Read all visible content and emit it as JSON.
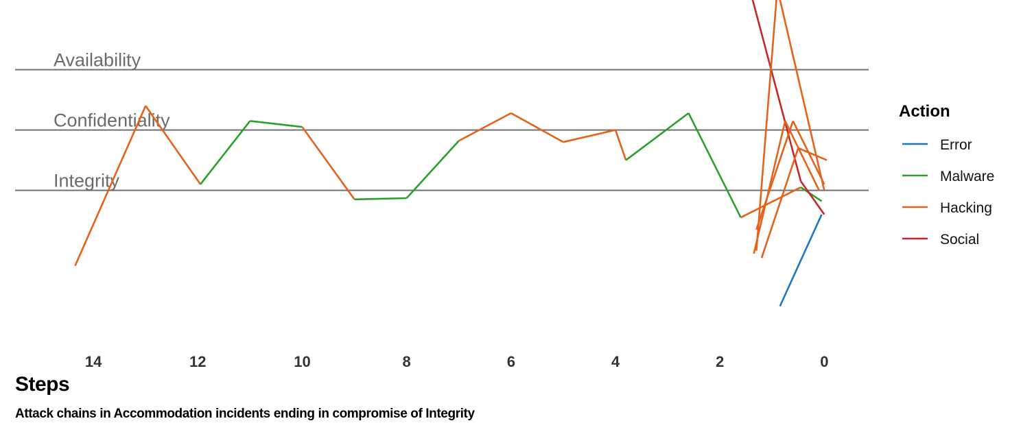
{
  "chart_data": {
    "type": "line",
    "xlabel": "Steps",
    "caption": "Attack chains in Accommodation incidents ending in compromise of Integrity",
    "x_ticks": [
      14,
      12,
      10,
      8,
      6,
      4,
      2,
      0
    ],
    "xlim": [
      15.5,
      -0.85
    ],
    "ylim": [
      -1.3,
      3.7
    ],
    "bands": [
      {
        "label": "Availability",
        "level": 3
      },
      {
        "label": "Confidentiality",
        "level": 2
      },
      {
        "label": "Integrity",
        "level": 1
      }
    ],
    "legend_title": "Action",
    "legend": [
      {
        "name": "Error",
        "color": "#1f77c4"
      },
      {
        "name": "Malware",
        "color": "#2aa02b"
      },
      {
        "name": "Hacking",
        "color": "#e5621a"
      },
      {
        "name": "Social",
        "color": "#c9252c"
      }
    ],
    "segments": [
      {
        "action": "Hacking",
        "points": [
          [
            14.35,
            -0.25
          ],
          [
            13.0,
            2.4
          ]
        ]
      },
      {
        "action": "Hacking",
        "points": [
          [
            13.0,
            2.4
          ],
          [
            11.95,
            1.1
          ]
        ]
      },
      {
        "action": "Malware",
        "points": [
          [
            11.95,
            1.1
          ],
          [
            11.0,
            2.15
          ]
        ]
      },
      {
        "action": "Malware",
        "points": [
          [
            11.0,
            2.15
          ],
          [
            10.0,
            2.05
          ]
        ]
      },
      {
        "action": "Hacking",
        "points": [
          [
            10.0,
            2.05
          ],
          [
            9.0,
            0.85
          ]
        ]
      },
      {
        "action": "Malware",
        "points": [
          [
            9.0,
            0.85
          ],
          [
            8.0,
            0.87
          ]
        ]
      },
      {
        "action": "Malware",
        "points": [
          [
            8.0,
            0.87
          ],
          [
            7.0,
            1.82
          ]
        ]
      },
      {
        "action": "Hacking",
        "points": [
          [
            7.0,
            1.82
          ],
          [
            6.0,
            2.28
          ]
        ]
      },
      {
        "action": "Hacking",
        "points": [
          [
            6.0,
            2.28
          ],
          [
            5.0,
            1.8
          ]
        ]
      },
      {
        "action": "Hacking",
        "points": [
          [
            5.0,
            1.8
          ],
          [
            4.0,
            2.0
          ]
        ]
      },
      {
        "action": "Hacking",
        "points": [
          [
            4.0,
            2.0
          ],
          [
            3.8,
            1.5
          ]
        ]
      },
      {
        "action": "Malware",
        "points": [
          [
            3.8,
            1.5
          ],
          [
            2.6,
            2.28
          ]
        ]
      },
      {
        "action": "Malware",
        "points": [
          [
            2.6,
            2.28
          ],
          [
            1.6,
            0.55
          ]
        ]
      },
      {
        "action": "Hacking",
        "points": [
          [
            1.6,
            0.55
          ],
          [
            0.45,
            1.05
          ]
        ]
      },
      {
        "action": "Malware",
        "points": [
          [
            0.45,
            1.05
          ],
          [
            0.05,
            0.82
          ]
        ]
      },
      {
        "action": "Social",
        "points": [
          [
            2.0,
            6.2
          ],
          [
            0.45,
            1.15
          ]
        ]
      },
      {
        "action": "Social",
        "points": [
          [
            0.45,
            1.15
          ],
          [
            0.0,
            0.6
          ]
        ]
      },
      {
        "action": "Hacking",
        "points": [
          [
            1.3,
            0.35
          ],
          [
            0.6,
            2.15
          ]
        ]
      },
      {
        "action": "Hacking",
        "points": [
          [
            0.6,
            2.15
          ],
          [
            0.0,
            1.1
          ]
        ]
      },
      {
        "action": "Hacking",
        "points": [
          [
            1.35,
            -0.05
          ],
          [
            0.75,
            2.15
          ]
        ]
      },
      {
        "action": "Hacking",
        "points": [
          [
            0.75,
            2.15
          ],
          [
            0.1,
            1.0
          ]
        ]
      },
      {
        "action": "Hacking",
        "points": [
          [
            1.2,
            -0.12
          ],
          [
            0.5,
            1.7
          ]
        ]
      },
      {
        "action": "Hacking",
        "points": [
          [
            0.5,
            1.7
          ],
          [
            -0.05,
            1.5
          ]
        ]
      },
      {
        "action": "Hacking",
        "points": [
          [
            1.3,
            0.0
          ],
          [
            0.9,
            4.35
          ]
        ]
      },
      {
        "action": "Hacking",
        "points": [
          [
            0.9,
            4.35
          ],
          [
            0.0,
            1.0
          ]
        ]
      },
      {
        "action": "Error",
        "points": [
          [
            0.85,
            -0.92
          ],
          [
            0.05,
            0.6
          ]
        ]
      }
    ]
  }
}
